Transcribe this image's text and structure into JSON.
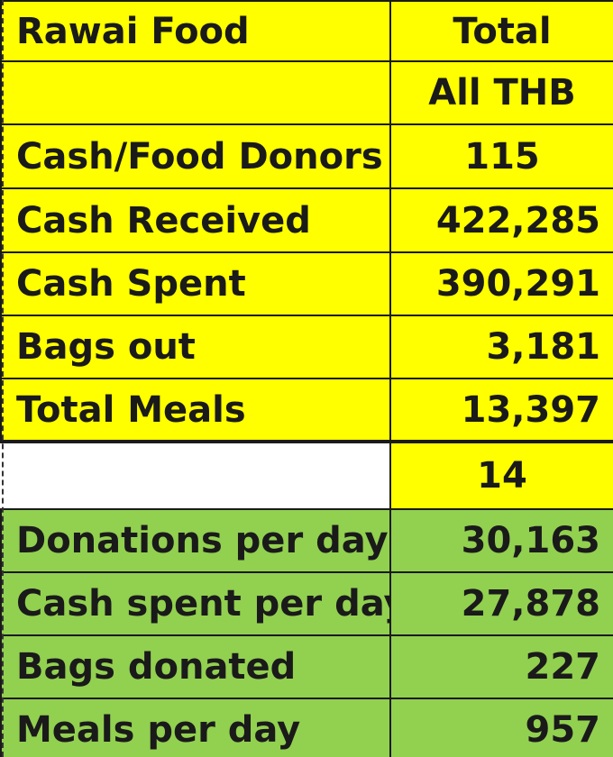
{
  "header": {
    "label": "Rawai Food",
    "total_label": "Total",
    "currency_label": "All THB"
  },
  "summary_rows": [
    {
      "label": "Cash/Food Donors",
      "value": "115"
    },
    {
      "label": "Cash Received",
      "value": "422,285"
    },
    {
      "label": "Cash Spent",
      "value": "390,291"
    },
    {
      "label": "Bags out",
      "value": "3,181"
    },
    {
      "label": "Total Meals",
      "value": "13,397"
    }
  ],
  "days_value": "14",
  "per_day_rows": [
    {
      "label": "Donations per day",
      "value": "30,163"
    },
    {
      "label": "Cash spent per day",
      "value": "27,878"
    },
    {
      "label": "Bags donated",
      "value": "227"
    },
    {
      "label": "Meals per day",
      "value": "957"
    }
  ],
  "colors": {
    "yellow_fill": "#ffff00",
    "green_fill": "#92d050",
    "border": "#1a1a1a"
  }
}
